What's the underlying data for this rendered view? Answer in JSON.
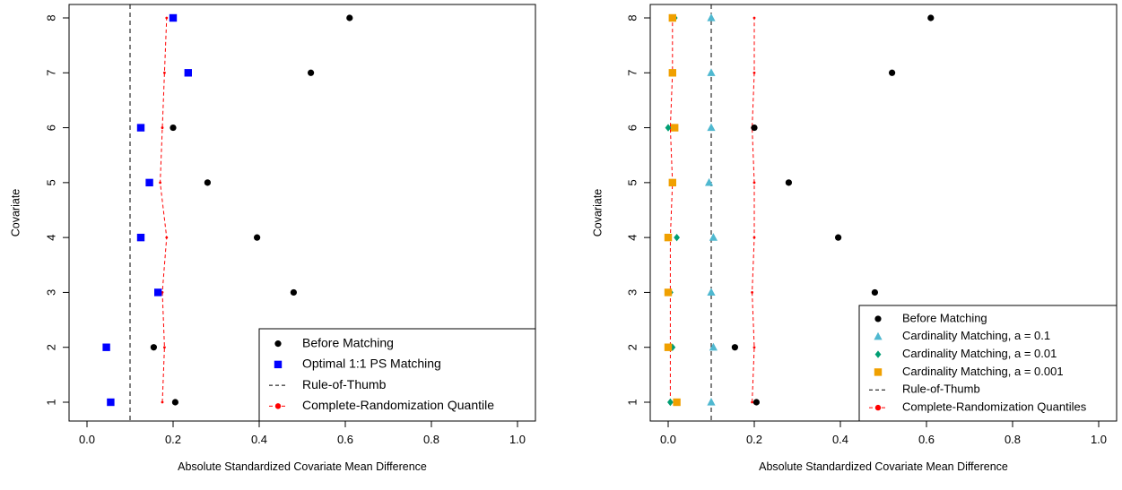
{
  "chart_data": [
    {
      "type": "scatter",
      "xlabel": "Absolute Standardized Covariate Mean Difference",
      "ylabel": "Covariate",
      "xlim": [
        0,
        1
      ],
      "ylim": [
        1,
        8
      ],
      "xticks": [
        "0.0",
        "0.2",
        "0.4",
        "0.6",
        "0.8",
        "1.0"
      ],
      "yticks": [
        "1",
        "2",
        "3",
        "4",
        "5",
        "6",
        "7",
        "8"
      ],
      "legend_position": "bottom-right",
      "series": [
        {
          "name": "Before Matching",
          "marker": "circle",
          "color": "#000000",
          "points": [
            [
              0.205,
              1
            ],
            [
              0.155,
              2
            ],
            [
              0.48,
              3
            ],
            [
              0.395,
              4
            ],
            [
              0.28,
              5
            ],
            [
              0.2,
              6
            ],
            [
              0.52,
              7
            ],
            [
              0.61,
              8
            ]
          ]
        },
        {
          "name": "Optimal 1:1 PS Matching",
          "marker": "square",
          "color": "#0000ff",
          "points": [
            [
              0.055,
              1
            ],
            [
              0.045,
              2
            ],
            [
              0.165,
              3
            ],
            [
              0.125,
              4
            ],
            [
              0.145,
              5
            ],
            [
              0.125,
              6
            ],
            [
              0.235,
              7
            ],
            [
              0.2,
              8
            ]
          ]
        },
        {
          "name": "Rule-of-Thumb",
          "kind": "vline",
          "color": "#000000",
          "x": 0.1
        },
        {
          "name": "Complete-Randomization Quantile",
          "kind": "dashed-line",
          "color": "#ff0000",
          "points": [
            [
              0.175,
              1
            ],
            [
              0.18,
              2
            ],
            [
              0.175,
              3
            ],
            [
              0.185,
              4
            ],
            [
              0.17,
              5
            ],
            [
              0.175,
              6
            ],
            [
              0.18,
              7
            ],
            [
              0.185,
              8
            ]
          ]
        }
      ]
    },
    {
      "type": "scatter",
      "xlabel": "Absolute Standardized Covariate Mean Difference",
      "ylabel": "Covariate",
      "xlim": [
        0,
        1
      ],
      "ylim": [
        1,
        8
      ],
      "xticks": [
        "0.0",
        "0.2",
        "0.4",
        "0.6",
        "0.8",
        "1.0"
      ],
      "yticks": [
        "1",
        "2",
        "3",
        "4",
        "5",
        "6",
        "7",
        "8"
      ],
      "legend_position": "bottom-right",
      "series": [
        {
          "name": "Before Matching",
          "marker": "circle",
          "color": "#000000",
          "points": [
            [
              0.205,
              1
            ],
            [
              0.155,
              2
            ],
            [
              0.48,
              3
            ],
            [
              0.395,
              4
            ],
            [
              0.28,
              5
            ],
            [
              0.2,
              6
            ],
            [
              0.52,
              7
            ],
            [
              0.61,
              8
            ]
          ]
        },
        {
          "name": "Cardinality Matching, a = 0.1",
          "marker": "triangle",
          "color": "#4fb8d0",
          "points": [
            [
              0.1,
              1
            ],
            [
              0.105,
              2
            ],
            [
              0.1,
              3
            ],
            [
              0.105,
              4
            ],
            [
              0.095,
              5
            ],
            [
              0.1,
              6
            ],
            [
              0.1,
              7
            ],
            [
              0.1,
              8
            ]
          ]
        },
        {
          "name": "Cardinality Matching, a = 0.01",
          "marker": "diamond",
          "color": "#009e73",
          "points": [
            [
              0.005,
              1
            ],
            [
              0.01,
              2
            ],
            [
              0.005,
              3
            ],
            [
              0.02,
              4
            ],
            [
              0.01,
              5
            ],
            [
              0,
              6
            ],
            [
              0.01,
              7
            ],
            [
              0.015,
              8
            ]
          ]
        },
        {
          "name": "Cardinality Matching, a = 0.001",
          "marker": "square",
          "color": "#f0a000",
          "points": [
            [
              0.02,
              1
            ],
            [
              0,
              2
            ],
            [
              0,
              3
            ],
            [
              0,
              4
            ],
            [
              0.01,
              5
            ],
            [
              0.015,
              6
            ],
            [
              0.01,
              7
            ],
            [
              0.01,
              8
            ]
          ]
        },
        {
          "name": "Rule-of-Thumb",
          "kind": "vline",
          "color": "#000000",
          "x": 0.1
        },
        {
          "name": "Complete-Randomization Quantiles",
          "kind": "dashed-line-pair",
          "color": "#ff0000",
          "points": [
            [
              0.005,
              1
            ],
            [
              0.005,
              2
            ],
            [
              0.005,
              3
            ],
            [
              0.005,
              4
            ],
            [
              0.01,
              5
            ],
            [
              0.005,
              6
            ],
            [
              0.01,
              7
            ],
            [
              0.01,
              8
            ]
          ],
          "points_upper": [
            [
              0.195,
              1
            ],
            [
              0.2,
              2
            ],
            [
              0.195,
              3
            ],
            [
              0.2,
              4
            ],
            [
              0.2,
              5
            ],
            [
              0.195,
              6
            ],
            [
              0.2,
              7
            ],
            [
              0.2,
              8
            ]
          ]
        }
      ]
    }
  ]
}
